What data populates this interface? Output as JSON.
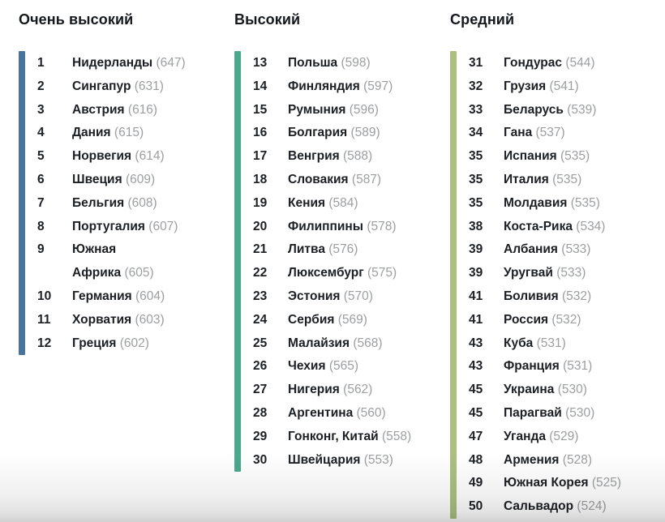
{
  "chart_data": {
    "type": "table",
    "description_colors": {
      "very_high_bar": "#45759E",
      "high_bar": "#4BA98D",
      "medium_bar": "#A9C080",
      "text_primary": "#1C1F23",
      "score_gray": "#9C9EA0"
    },
    "groups": [
      {
        "title": "Очень высокий",
        "bar_color": "#45759E",
        "rows": [
          {
            "rank": "1",
            "country": "Нидерланды",
            "score": 647
          },
          {
            "rank": "2",
            "country": "Сингапур",
            "score": 631
          },
          {
            "rank": "3",
            "country": "Австрия",
            "score": 616
          },
          {
            "rank": "4",
            "country": "Дания",
            "score": 615
          },
          {
            "rank": "5",
            "country": "Норвегия",
            "score": 614
          },
          {
            "rank": "6",
            "country": "Швеция",
            "score": 609
          },
          {
            "rank": "7",
            "country": "Бельгия",
            "score": 608
          },
          {
            "rank": "8",
            "country": "Португалия",
            "score": 607
          },
          {
            "rank": "9",
            "country": "Южная\nАфрика",
            "score": 605
          },
          {
            "rank": "10",
            "country": "Германия",
            "score": 604
          },
          {
            "rank": "11",
            "country": "Хорватия",
            "score": 603
          },
          {
            "rank": "12",
            "country": "Греция",
            "score": 602
          }
        ]
      },
      {
        "title": "Высокий",
        "bar_color": "#4BA98D",
        "rows": [
          {
            "rank": "13",
            "country": "Польша",
            "score": 598
          },
          {
            "rank": "14",
            "country": "Финляндия",
            "score": 597
          },
          {
            "rank": "15",
            "country": "Румыния",
            "score": 596
          },
          {
            "rank": "16",
            "country": "Болгария",
            "score": 589
          },
          {
            "rank": "17",
            "country": "Венгрия",
            "score": 588
          },
          {
            "rank": "18",
            "country": "Словакия",
            "score": 587
          },
          {
            "rank": "19",
            "country": "Кения",
            "score": 584
          },
          {
            "rank": "20",
            "country": "Филиппины",
            "score": 578
          },
          {
            "rank": "21",
            "country": "Литва",
            "score": 576
          },
          {
            "rank": "22",
            "country": "Люксембург",
            "score": 575
          },
          {
            "rank": "23",
            "country": "Эстония",
            "score": 570
          },
          {
            "rank": "24",
            "country": "Сербия",
            "score": 569
          },
          {
            "rank": "25",
            "country": "Малайзия",
            "score": 568
          },
          {
            "rank": "26",
            "country": "Чехия",
            "score": 565
          },
          {
            "rank": "27",
            "country": "Нигерия",
            "score": 562
          },
          {
            "rank": "28",
            "country": "Аргентина",
            "score": 560
          },
          {
            "rank": "29",
            "country": "Гонконг, Китай",
            "score": 558
          },
          {
            "rank": "30",
            "country": "Швейцария",
            "score": 553
          }
        ]
      },
      {
        "title": "Средний",
        "bar_color": "#A9C080",
        "rows": [
          {
            "rank": "31",
            "country": "Гондурас",
            "score": 544
          },
          {
            "rank": "32",
            "country": "Грузия",
            "score": 541
          },
          {
            "rank": "33",
            "country": "Беларусь",
            "score": 539
          },
          {
            "rank": "34",
            "country": "Гана",
            "score": 537
          },
          {
            "rank": "35",
            "country": "Испания",
            "score": 535
          },
          {
            "rank": "35",
            "country": "Италия",
            "score": 535
          },
          {
            "rank": "35",
            "country": "Молдавия",
            "score": 535
          },
          {
            "rank": "38",
            "country": "Коста-Рика",
            "score": 534
          },
          {
            "rank": "39",
            "country": "Албания",
            "score": 533
          },
          {
            "rank": "39",
            "country": "Уругвай",
            "score": 533
          },
          {
            "rank": "41",
            "country": "Боливия",
            "score": 532
          },
          {
            "rank": "41",
            "country": "Россия",
            "score": 532
          },
          {
            "rank": "43",
            "country": "Куба",
            "score": 531
          },
          {
            "rank": "43",
            "country": "Франция",
            "score": 531
          },
          {
            "rank": "45",
            "country": "Украина",
            "score": 530
          },
          {
            "rank": "45",
            "country": "Парагвай",
            "score": 530
          },
          {
            "rank": "47",
            "country": "Уганда",
            "score": 529
          },
          {
            "rank": "48",
            "country": "Армения",
            "score": 528
          },
          {
            "rank": "49",
            "country": "Южная Корея",
            "score": 525
          },
          {
            "rank": "50",
            "country": "Сальвадор",
            "score": 524
          }
        ]
      }
    ]
  }
}
